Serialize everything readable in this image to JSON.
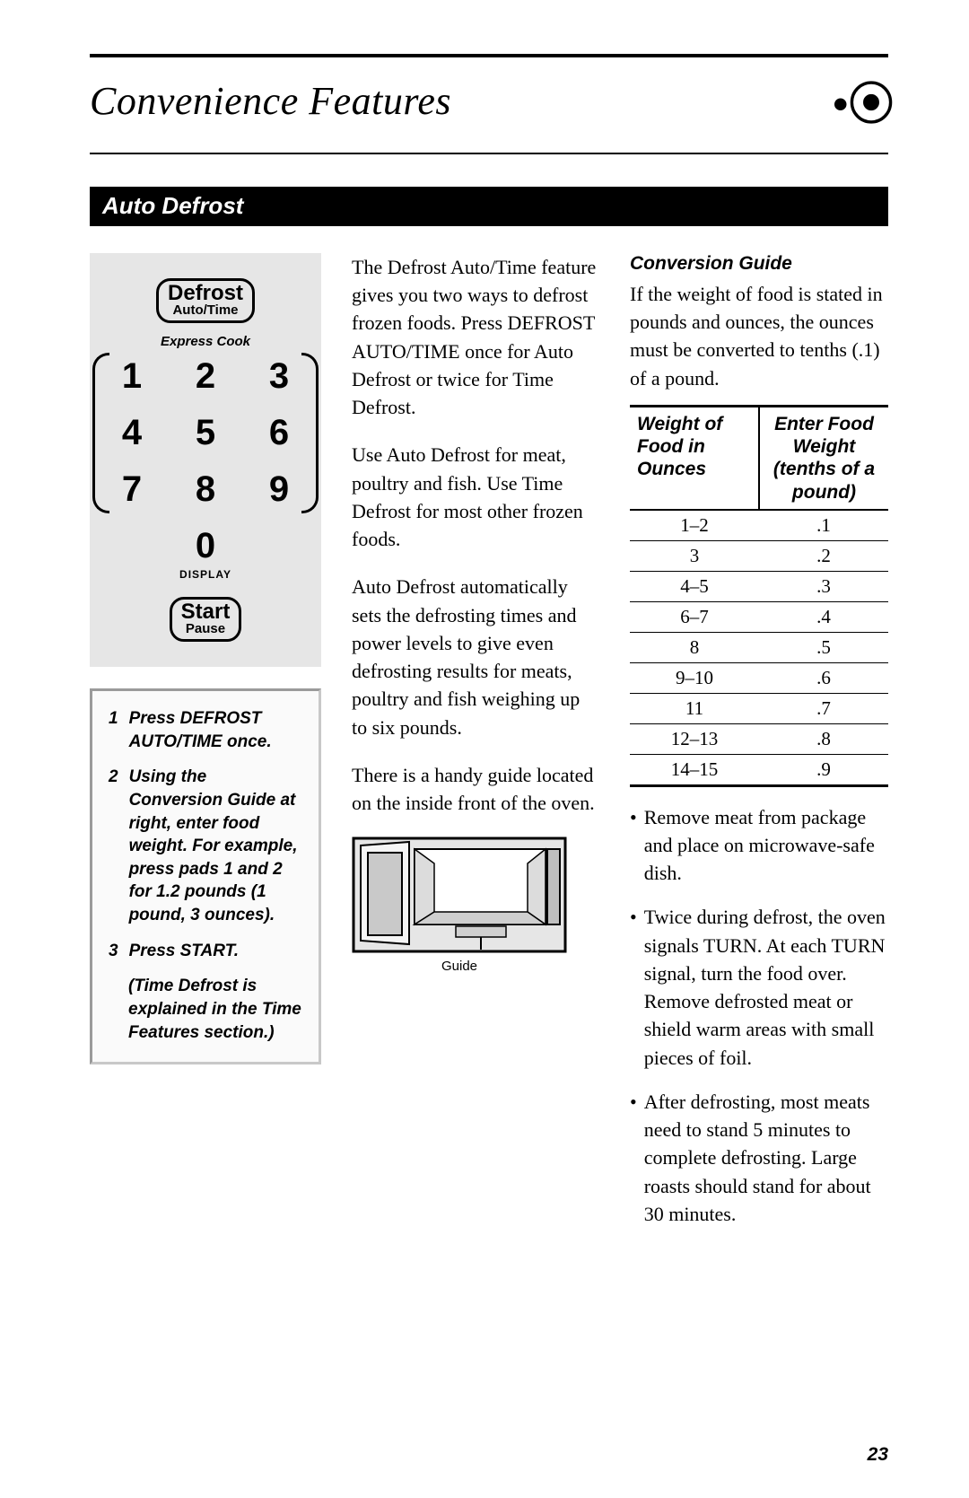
{
  "page_title": "Convenience Features",
  "section_title": "Auto Defrost",
  "page_number": "23",
  "keypad": {
    "defrost_main": "Defrost",
    "defrost_sub": "Auto/Time",
    "express_label": "Express Cook",
    "digits": [
      "1",
      "2",
      "3",
      "4",
      "5",
      "6",
      "7",
      "8",
      "9"
    ],
    "zero": "0",
    "display_label": "DISPLAY",
    "start_main": "Start",
    "start_sub": "Pause"
  },
  "steps": [
    {
      "n": "1",
      "text": "Press DEFROST AUTO/TIME once."
    },
    {
      "n": "2",
      "text": "Using the Conversion Guide at right, enter food weight. For example, press pads 1 and 2 for 1.2 pounds (1 pound, 3 ounces)."
    },
    {
      "n": "3",
      "text": "Press START."
    }
  ],
  "steps_note": "(Time Defrost is explained in the Time Features section.)",
  "body_paragraphs": [
    "The Defrost Auto/Time feature gives you two ways to defrost frozen foods. Press DEFROST AUTO/TIME once for Auto Defrost or twice for Time Defrost.",
    "Use Auto Defrost for meat, poultry and fish. Use Time Defrost for most other frozen foods.",
    "Auto Defrost automatically sets the defrosting times and power levels to give even defrosting results for meats, poultry and fish weighing up to six pounds.",
    "There is a handy guide located on the inside front of the oven."
  ],
  "figure_caption": "Guide",
  "conversion": {
    "heading": "Conversion Guide",
    "intro": "If the weight of food is stated in pounds and ounces, the ounces must be converted to tenths (.1) of a pound.",
    "col_a": "Weight of Food in Ounces",
    "col_b": "Enter Food Weight (tenths of a pound)",
    "rows": [
      {
        "a": "1–2",
        "b": ".1"
      },
      {
        "a": "3",
        "b": ".2"
      },
      {
        "a": "4–5",
        "b": ".3"
      },
      {
        "a": "6–7",
        "b": ".4"
      },
      {
        "a": "8",
        "b": ".5"
      },
      {
        "a": "9–10",
        "b": ".6"
      },
      {
        "a": "11",
        "b": ".7"
      },
      {
        "a": "12–13",
        "b": ".8"
      },
      {
        "a": "14–15",
        "b": ".9"
      }
    ]
  },
  "bullets": [
    "Remove meat from package and place on microwave-safe dish.",
    "Twice during defrost, the oven signals TURN. At each TURN signal, turn the food over. Remove defrosted meat or shield warm areas with small pieces of foil.",
    "After defrosting, most meats need to stand 5 minutes to complete defrosting. Large roasts should stand for about 30 minutes."
  ],
  "style": {
    "page_bg": "#ffffff",
    "text_color": "#000000",
    "panel_bg": "#e6e6e6",
    "steps_border_light": "#c8c8c8",
    "steps_border_dark": "#9a9a9a",
    "body_fontsize_pt": 16,
    "title_fontsize_pt": 33,
    "section_bar_fontsize_pt": 20
  }
}
